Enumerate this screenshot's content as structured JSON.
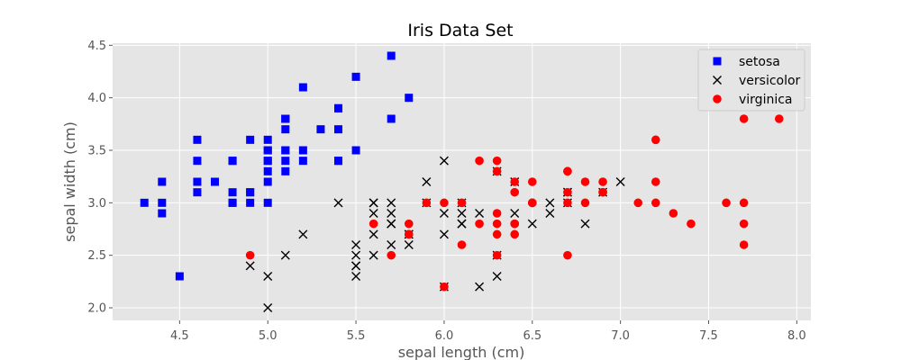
{
  "chart_data": {
    "type": "scatter",
    "title": "Iris Data Set",
    "xlabel": "sepal length (cm)",
    "ylabel": "sepal width (cm)",
    "xlim": [
      4.12,
      8.08
    ],
    "ylim": [
      1.88,
      4.52
    ],
    "xticks": [
      4.5,
      5.0,
      5.5,
      6.0,
      6.5,
      7.0,
      7.5,
      8.0
    ],
    "xtick_labels": [
      "4.5",
      "5.0",
      "5.5",
      "6.0",
      "6.5",
      "7.0",
      "7.5",
      "8.0"
    ],
    "yticks": [
      2.0,
      2.5,
      3.0,
      3.5,
      4.0,
      4.5
    ],
    "ytick_labels": [
      "2.0",
      "2.5",
      "3.0",
      "3.5",
      "4.0",
      "4.5"
    ],
    "grid": true,
    "legend_position": "top-right",
    "background": "#e5e5e5",
    "grid_color": "#ffffff",
    "series": [
      {
        "name": "setosa",
        "marker": "square",
        "color": "#0000ff",
        "points": [
          [
            5.1,
            3.5
          ],
          [
            4.9,
            3.0
          ],
          [
            4.7,
            3.2
          ],
          [
            4.6,
            3.1
          ],
          [
            5.0,
            3.6
          ],
          [
            5.4,
            3.9
          ],
          [
            4.6,
            3.4
          ],
          [
            5.0,
            3.4
          ],
          [
            4.4,
            2.9
          ],
          [
            4.9,
            3.1
          ],
          [
            5.4,
            3.7
          ],
          [
            4.8,
            3.4
          ],
          [
            4.8,
            3.0
          ],
          [
            4.3,
            3.0
          ],
          [
            5.8,
            4.0
          ],
          [
            5.7,
            4.4
          ],
          [
            5.4,
            3.9
          ],
          [
            5.1,
            3.5
          ],
          [
            5.7,
            3.8
          ],
          [
            5.1,
            3.8
          ],
          [
            5.4,
            3.4
          ],
          [
            5.1,
            3.7
          ],
          [
            4.6,
            3.6
          ],
          [
            5.1,
            3.3
          ],
          [
            4.8,
            3.4
          ],
          [
            5.0,
            3.0
          ],
          [
            5.0,
            3.4
          ],
          [
            5.2,
            3.5
          ],
          [
            5.2,
            3.4
          ],
          [
            4.7,
            3.2
          ],
          [
            4.8,
            3.1
          ],
          [
            5.4,
            3.4
          ],
          [
            5.2,
            4.1
          ],
          [
            5.5,
            4.2
          ],
          [
            4.9,
            3.1
          ],
          [
            5.0,
            3.2
          ],
          [
            5.5,
            3.5
          ],
          [
            4.9,
            3.6
          ],
          [
            4.4,
            3.0
          ],
          [
            5.1,
            3.4
          ],
          [
            5.0,
            3.5
          ],
          [
            4.5,
            2.3
          ],
          [
            4.4,
            3.2
          ],
          [
            5.0,
            3.5
          ],
          [
            5.1,
            3.8
          ],
          [
            4.8,
            3.0
          ],
          [
            5.1,
            3.8
          ],
          [
            4.6,
            3.2
          ],
          [
            5.3,
            3.7
          ],
          [
            5.0,
            3.3
          ]
        ]
      },
      {
        "name": "versicolor",
        "marker": "x",
        "color": "#000000",
        "points": [
          [
            7.0,
            3.2
          ],
          [
            6.4,
            3.2
          ],
          [
            6.9,
            3.1
          ],
          [
            5.5,
            2.3
          ],
          [
            6.5,
            2.8
          ],
          [
            5.7,
            2.8
          ],
          [
            6.3,
            3.3
          ],
          [
            4.9,
            2.4
          ],
          [
            6.6,
            2.9
          ],
          [
            5.2,
            2.7
          ],
          [
            5.0,
            2.0
          ],
          [
            5.9,
            3.0
          ],
          [
            6.0,
            2.2
          ],
          [
            6.1,
            2.9
          ],
          [
            5.6,
            2.9
          ],
          [
            6.7,
            3.1
          ],
          [
            5.6,
            3.0
          ],
          [
            5.8,
            2.7
          ],
          [
            6.2,
            2.2
          ],
          [
            5.6,
            2.5
          ],
          [
            5.9,
            3.2
          ],
          [
            6.1,
            2.8
          ],
          [
            6.3,
            2.5
          ],
          [
            6.1,
            2.8
          ],
          [
            6.4,
            2.9
          ],
          [
            6.6,
            3.0
          ],
          [
            6.8,
            2.8
          ],
          [
            6.7,
            3.0
          ],
          [
            6.0,
            2.9
          ],
          [
            5.7,
            2.6
          ],
          [
            5.5,
            2.4
          ],
          [
            5.5,
            2.4
          ],
          [
            5.8,
            2.7
          ],
          [
            6.0,
            2.7
          ],
          [
            5.4,
            3.0
          ],
          [
            6.0,
            3.4
          ],
          [
            6.7,
            3.1
          ],
          [
            6.3,
            2.3
          ],
          [
            5.6,
            3.0
          ],
          [
            5.5,
            2.5
          ],
          [
            5.5,
            2.6
          ],
          [
            6.1,
            3.0
          ],
          [
            5.8,
            2.6
          ],
          [
            5.0,
            2.3
          ],
          [
            5.6,
            2.7
          ],
          [
            5.7,
            3.0
          ],
          [
            5.7,
            2.9
          ],
          [
            6.2,
            2.9
          ],
          [
            5.1,
            2.5
          ],
          [
            5.7,
            2.8
          ]
        ]
      },
      {
        "name": "virginica",
        "marker": "circle",
        "color": "#ff0000",
        "points": [
          [
            6.3,
            3.3
          ],
          [
            5.8,
            2.7
          ],
          [
            7.1,
            3.0
          ],
          [
            6.3,
            2.9
          ],
          [
            6.5,
            3.0
          ],
          [
            7.6,
            3.0
          ],
          [
            4.9,
            2.5
          ],
          [
            7.3,
            2.9
          ],
          [
            6.7,
            2.5
          ],
          [
            7.2,
            3.6
          ],
          [
            6.5,
            3.2
          ],
          [
            6.4,
            2.7
          ],
          [
            6.8,
            3.0
          ],
          [
            5.7,
            2.5
          ],
          [
            5.8,
            2.8
          ],
          [
            6.4,
            3.2
          ],
          [
            6.5,
            3.0
          ],
          [
            7.7,
            3.8
          ],
          [
            7.7,
            2.6
          ],
          [
            6.0,
            2.2
          ],
          [
            6.9,
            3.2
          ],
          [
            5.6,
            2.8
          ],
          [
            7.7,
            2.8
          ],
          [
            6.3,
            2.7
          ],
          [
            6.7,
            3.3
          ],
          [
            7.2,
            3.2
          ],
          [
            6.2,
            2.8
          ],
          [
            6.1,
            3.0
          ],
          [
            6.4,
            2.8
          ],
          [
            7.2,
            3.0
          ],
          [
            7.4,
            2.8
          ],
          [
            7.9,
            3.8
          ],
          [
            6.4,
            2.8
          ],
          [
            6.3,
            2.8
          ],
          [
            6.1,
            2.6
          ],
          [
            7.7,
            3.0
          ],
          [
            6.3,
            3.4
          ],
          [
            6.4,
            3.1
          ],
          [
            6.0,
            3.0
          ],
          [
            6.9,
            3.1
          ],
          [
            6.7,
            3.1
          ],
          [
            6.9,
            3.1
          ],
          [
            5.8,
            2.7
          ],
          [
            6.8,
            3.2
          ],
          [
            6.7,
            3.3
          ],
          [
            6.7,
            3.0
          ],
          [
            6.3,
            2.5
          ],
          [
            6.5,
            3.0
          ],
          [
            6.2,
            3.4
          ],
          [
            5.9,
            3.0
          ]
        ]
      }
    ]
  }
}
